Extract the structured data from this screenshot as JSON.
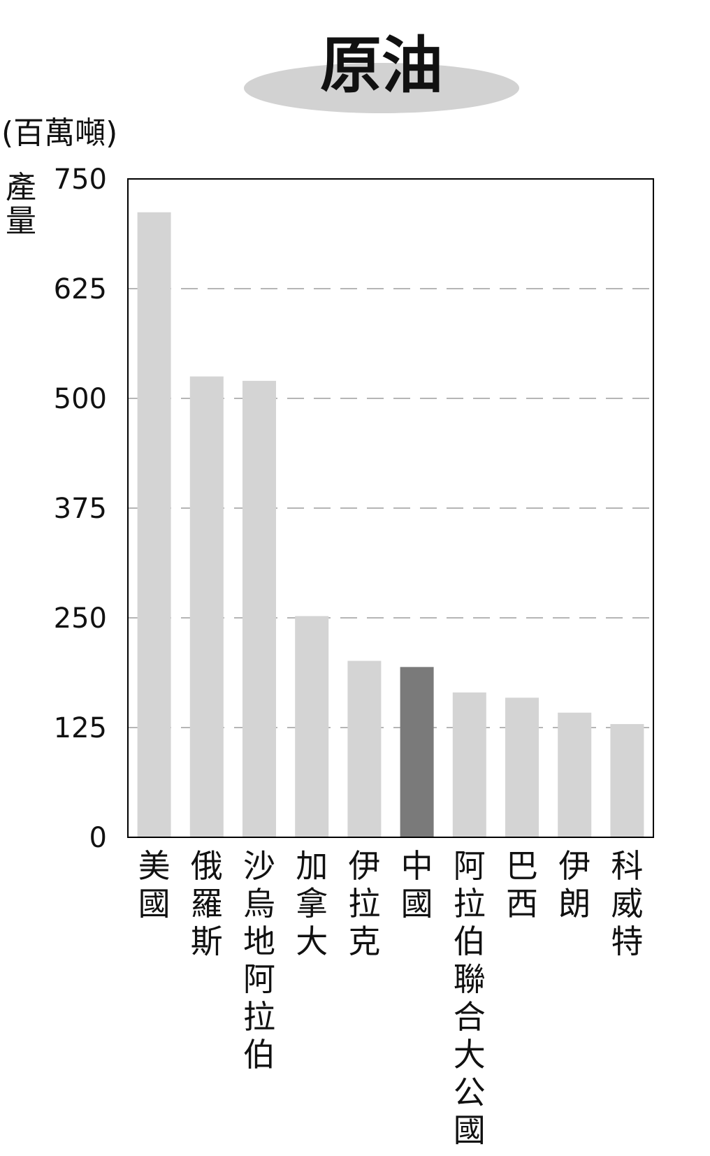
{
  "chart_data": {
    "type": "bar",
    "title": "原油",
    "unit": "(百萬噸)",
    "ylabel": "產量",
    "ylim": [
      0,
      750
    ],
    "yticks": [
      0,
      125,
      250,
      375,
      500,
      625,
      750
    ],
    "grid": "horizontal-dashed",
    "categories": [
      "美國",
      "俄羅斯",
      "沙烏地阿拉伯",
      "加拿大",
      "伊拉克",
      "中國",
      "阿拉伯聯合大公國",
      "巴西",
      "伊朗",
      "科威特"
    ],
    "values": [
      712,
      525,
      520,
      252,
      201,
      194,
      165,
      159,
      142,
      129
    ],
    "highlight": "中國",
    "colors": {
      "bar": "#d4d4d4",
      "highlight": "#7a7a7a",
      "highlight_label": "#8c8c8c",
      "frame": "#000000",
      "grid": "#b5b5b5",
      "title_ellipse": "#d2d2d2"
    }
  }
}
